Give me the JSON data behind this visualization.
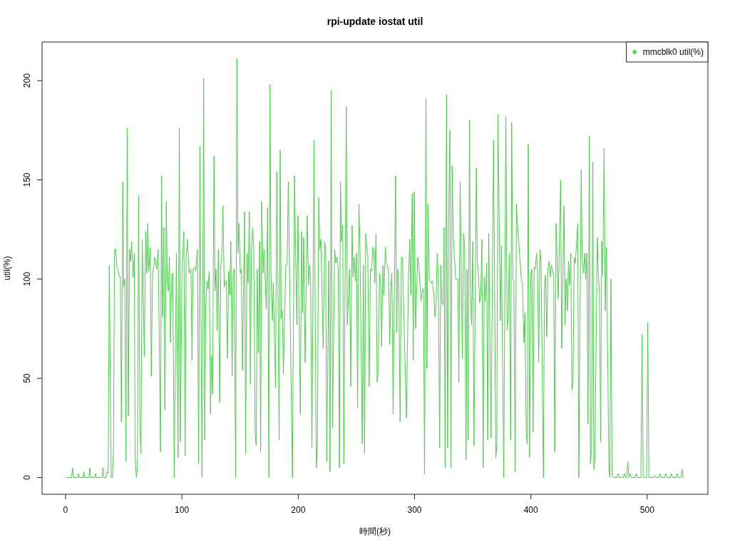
{
  "chart_data": {
    "type": "line",
    "title": "rpi-update iostat util",
    "xlabel": "時間(秒)",
    "ylabel": "util(%)",
    "x": [
      1,
      5.2,
      6.0,
      6.8,
      10.3,
      11.0,
      11.7,
      15.0,
      15.7,
      16.4,
      20.1,
      20.8,
      21.5,
      25.2,
      25.9,
      26.6,
      31.3,
      32.1,
      32.9,
      35.0,
      35.7,
      36.6,
      37.6,
      39.2,
      40.3,
      41.2,
      42.1,
      43.2,
      44.1,
      45.0,
      46.2,
      47.1,
      48.0,
      49.2,
      50.0,
      50.9,
      51.9,
      53.0,
      53.9,
      55.0,
      55.9,
      56.8,
      58.0,
      59.1,
      59.8,
      60.9,
      61.8,
      62.8,
      63.9,
      64.8,
      65.9,
      67.7,
      68.9,
      69.8,
      70.7,
      71.6,
      72.8,
      73.7,
      74.8,
      75.7,
      76.6,
      77.5,
      78.4,
      79.6,
      80.5,
      81.6,
      82.5,
      83.4,
      84.5,
      85.4,
      86.6,
      87.5,
      88.4,
      89.3,
      90.2,
      91.3,
      92.2,
      93.4,
      95.3,
      96.7,
      97.8,
      98.7,
      100.1,
      101.7,
      102.8,
      103.7,
      104.7,
      106.3,
      107.8,
      108.7,
      109.6,
      110.8,
      111.9,
      113.3,
      114.4,
      115.5,
      117.3,
      118.7,
      119.6,
      120.5,
      121.7,
      122.5,
      123.5,
      124.6,
      125.5,
      126.4,
      127.6,
      128.5,
      129.4,
      130.3,
      131.4,
      132.4,
      133.5,
      134.4,
      135.3,
      136.4,
      137.5,
      138.2,
      139.1,
      140.3,
      141.2,
      142.1,
      143.2,
      144.1,
      145.0,
      146.2,
      147.3,
      148.2,
      149.1,
      150.2,
      151.1,
      152.1,
      153.9,
      154.8,
      155.9,
      156.9,
      158.0,
      158.9,
      159.8,
      160.9,
      161.8,
      163.0,
      163.9,
      164.8,
      165.7,
      166.8,
      167.7,
      168.6,
      169.8,
      170.7,
      172.5,
      173.7,
      174.8,
      175.7,
      176.6,
      177.7,
      178.6,
      180.5,
      181.6,
      182.5,
      183.6,
      184.5,
      185.4,
      186.3,
      187.3,
      189.3,
      190.4,
      191.5,
      195.0,
      196.8,
      198.8,
      199.8,
      201.8,
      202.9,
      203.8,
      204.7,
      205.9,
      207.7,
      208.8,
      209.7,
      210.6,
      211.8,
      213.6,
      214.7,
      215.6,
      216.5,
      217.6,
      218.6,
      219.5,
      221.5,
      222.7,
      223.6,
      224.5,
      226.3,
      227.4,
      228.3,
      229.5,
      231.3,
      232.4,
      233.3,
      234.4,
      235.4,
      236.3,
      237.2,
      238.3,
      239.2,
      241.3,
      242.2,
      244.2,
      245.1,
      246.3,
      247.2,
      248.1,
      249.2,
      250.1,
      251.0,
      252.2,
      253.1,
      255.1,
      256.0,
      257.1,
      258.0,
      258.9,
      259.8,
      261.0,
      262.1,
      263.0,
      264.0,
      264.9,
      265.8,
      266.9,
      267.8,
      268.8,
      269.9,
      270.8,
      271.7,
      272.8,
      273.7,
      274.9,
      275.8,
      276.7,
      277.6,
      278.7,
      279.6,
      280.5,
      281.6,
      283.7,
      284.6,
      285.5,
      286.4,
      287.6,
      288.7,
      289.6,
      293.0,
      294.8,
      295.9,
      296.8,
      298.0,
      298.9,
      299.8,
      300.9,
      302.7,
      303.6,
      304.7,
      305.6,
      306.8,
      307.7,
      308.6,
      309.8,
      310.7,
      311.6,
      312.7,
      313.6,
      314.5,
      315.4,
      316.6,
      317.5,
      318.4,
      319.5,
      320.4,
      321.6,
      322.5,
      323.4,
      324.5,
      325.4,
      326.3,
      327.5,
      328.4,
      329.3,
      330.4,
      331.3,
      332.3,
      333.4,
      334.3,
      335.4,
      337.2,
      338.1,
      339.2,
      340.2,
      341.1,
      342.2,
      343.1,
      344.3,
      345.2,
      346.1,
      347.2,
      348.1,
      349.0,
      350.1,
      351.1,
      353.1,
      354.0,
      354.9,
      356.0,
      356.9,
      357.9,
      359.0,
      359.9,
      360.8,
      362.0,
      362.9,
      363.8,
      365.8,
      367.9,
      369.9,
      370.8,
      371.7,
      373.8,
      374.7,
      376.7,
      378.5,
      379.6,
      380.5,
      381.5,
      382.6,
      383.5,
      384.5,
      385.4,
      386.5,
      387.6,
      388.5,
      391.9,
      392.8,
      394.0,
      394.9,
      396.0,
      396.9,
      397.8,
      398.9,
      399.9,
      400.8,
      401.9,
      402.8,
      403.7,
      404.9,
      405.8,
      406.7,
      407.9,
      408.8,
      410.8,
      411.7,
      412.6,
      413.7,
      414.6,
      415.8,
      416.7,
      417.6,
      419.7,
      420.5,
      421.7,
      423.5,
      425.6,
      426.5,
      428.5,
      429.4,
      430.3,
      431.4,
      432.3,
      433.2,
      434.4,
      435.3,
      436.2,
      437.3,
      438.2,
      440.3,
      441.2,
      443.3,
      444.2,
      445.3,
      446.2,
      447.1,
      448.2,
      449.1,
      450.3,
      451.2,
      452.1,
      453.3,
      454.1,
      455.0,
      457.1,
      458.0,
      458.9,
      460.0,
      460.9,
      461.8,
      463.0,
      463.9,
      465.0,
      467.1,
      467.9,
      468.9,
      469.8,
      471.0,
      473.9,
      474.9,
      475.9,
      479.4,
      480.4,
      481.4,
      482.3,
      483.3,
      484.3,
      485.3,
      486.3,
      489.7,
      490.7,
      491.7,
      494.6,
      495.6,
      496.6,
      499.5,
      500.5,
      501.5,
      505.1,
      506.1,
      507.1,
      510,
      511,
      512,
      515,
      516,
      517,
      519.8,
      520.8,
      521.8,
      524.7,
      525.7,
      526.7,
      529,
      530,
      531
    ],
    "series": [
      {
        "name": "mmcblk0 util(%)",
        "color": "#4dcc4d",
        "values": [
          0,
          0,
          5,
          0,
          0,
          2,
          0,
          0,
          3,
          0,
          0,
          5,
          0,
          0,
          2,
          0,
          0,
          5,
          0,
          0,
          3,
          2,
          107,
          0,
          0,
          14,
          115,
          115,
          106,
          105,
          101,
          101,
          28,
          149,
          96,
          100,
          8,
          176,
          31,
          115,
          109,
          119,
          101,
          113,
          10,
          0,
          5,
          142,
          25,
          12,
          120,
          61,
          124,
          103,
          128,
          104,
          116,
          51,
          103,
          105,
          111,
          108,
          105,
          115,
          73,
          13,
          152,
          81,
          126,
          34,
          139,
          97,
          94,
          111,
          68,
          102,
          103,
          0,
          113,
          10,
          176,
          18,
          104,
          124,
          11,
          111,
          120,
          103,
          105,
          59,
          105,
          106,
          104,
          115,
          7,
          167,
          0,
          201,
          19,
          87,
          99,
          95,
          104,
          32,
          61,
          42,
          162,
          94,
          105,
          74,
          115,
          38,
          107,
          113,
          137,
          96,
          99,
          99,
          60,
          104,
          92,
          119,
          51,
          103,
          105,
          0,
          211,
          113,
          128,
          103,
          105,
          54,
          134,
          12,
          113,
          98,
          134,
          47,
          115,
          126,
          115,
          22,
          16,
          105,
          63,
          119,
          13,
          139,
          103,
          115,
          85,
          136,
          0,
          198,
          103,
          79,
          98,
          45,
          154,
          103,
          19,
          165,
          80,
          84,
          52,
          107,
          107,
          149,
          0,
          152,
          77,
          132,
          32,
          124,
          83,
          121,
          58,
          132,
          97,
          107,
          101,
          15,
          170,
          73,
          5,
          17,
          141,
          115,
          120,
          65,
          119,
          115,
          8,
          109,
          3,
          195,
          25,
          115,
          108,
          111,
          105,
          5,
          149,
          119,
          127,
          7,
          187,
          77,
          105,
          46,
          127,
          101,
          111,
          99,
          113,
          35,
          138,
          116,
          17,
          107,
          12,
          123,
          116,
          112,
          46,
          105,
          104,
          116,
          115,
          98,
          123,
          48,
          53,
          103,
          99,
          66,
          107,
          92,
          116,
          108,
          107,
          104,
          67,
          96,
          103,
          32,
          152,
          73,
          105,
          100,
          28,
          111,
          111,
          30,
          101,
          120,
          92,
          143,
          59,
          144,
          75,
          111,
          108,
          97,
          89,
          95,
          95,
          2,
          191,
          55,
          138,
          100,
          99,
          98,
          99,
          92,
          81,
          86,
          113,
          102,
          15,
          107,
          88,
          87,
          126,
          5,
          193,
          15,
          126,
          175,
          5,
          157,
          121,
          111,
          100,
          100,
          48,
          149,
          103,
          60,
          123,
          116,
          9,
          105,
          19,
          180,
          93,
          77,
          119,
          16,
          156,
          108,
          103,
          88,
          92,
          120,
          5,
          101,
          89,
          108,
          19,
          123,
          20,
          170,
          10,
          17,
          183,
          79,
          117,
          0,
          182,
          74,
          81,
          113,
          19,
          179,
          100,
          99,
          3,
          138,
          128,
          99,
          98,
          68,
          83,
          22,
          17,
          168,
          10,
          102,
          105,
          23,
          106,
          105,
          113,
          103,
          58,
          115,
          108,
          0,
          96,
          102,
          71,
          105,
          109,
          101,
          107,
          102,
          13,
          128,
          90,
          150,
          65,
          137,
          77,
          100,
          84,
          109,
          97,
          113,
          44,
          47,
          111,
          108,
          128,
          0,
          155,
          109,
          103,
          113,
          100,
          113,
          27,
          172,
          7,
          14,
          159,
          4,
          9,
          121,
          103,
          93,
          18,
          119,
          102,
          166,
          84,
          116,
          5,
          0,
          100,
          1,
          0,
          0,
          2,
          0,
          0,
          2,
          0,
          0,
          8,
          0,
          2,
          0,
          0,
          2,
          0,
          0,
          72,
          0,
          0,
          78,
          0,
          0,
          1,
          0,
          0,
          2,
          0,
          0,
          2,
          0,
          0,
          2,
          0,
          0,
          2,
          0,
          0,
          4,
          0
        ]
      }
    ],
    "xlim": [
      -20.2,
      552.2
    ],
    "ylim": [
      -8.44,
      219.44
    ],
    "xticks": [
      0,
      100,
      200,
      300,
      400,
      500
    ],
    "yticks": [
      0,
      50,
      100,
      150,
      200
    ],
    "legend": "top right"
  }
}
